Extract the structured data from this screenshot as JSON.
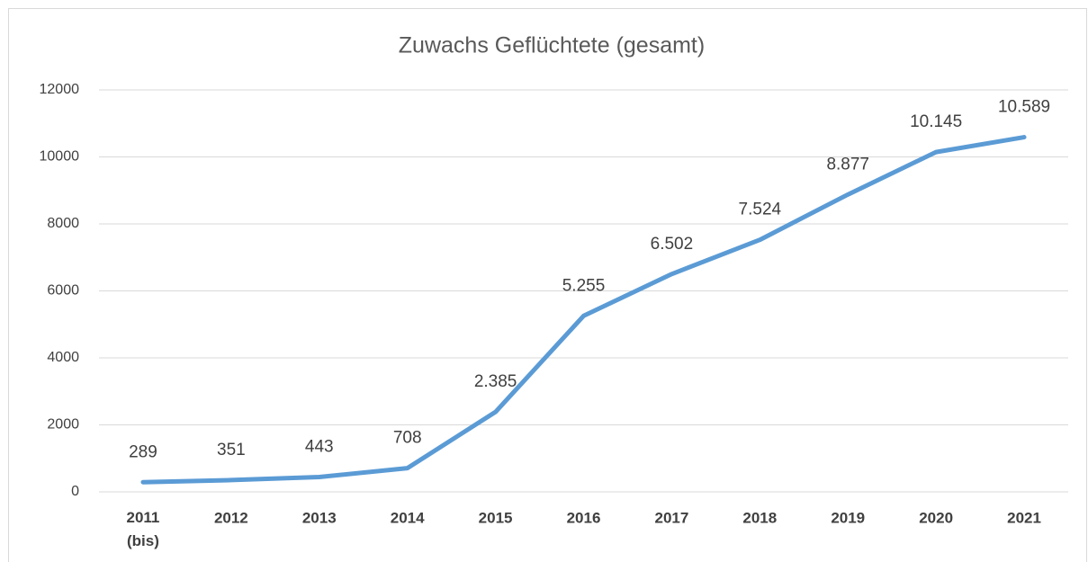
{
  "chart_data": {
    "type": "line",
    "title": "Zuwachs Geflüchtete (gesamt)",
    "categories": [
      "2011 (bis)",
      "2012",
      "2013",
      "2014",
      "2015",
      "2016",
      "2017",
      "2018",
      "2019",
      "2020",
      "2021"
    ],
    "series": [
      {
        "color": "#5b9bd5",
        "values": [
          289,
          351,
          443,
          708,
          2385,
          5255,
          6502,
          7524,
          8877,
          10145,
          10589
        ],
        "value_labels": [
          "289",
          "351",
          "443",
          "708",
          "2.385",
          "5.255",
          "6.502",
          "7.524",
          "8.877",
          "10.145",
          "10.589"
        ]
      }
    ],
    "ylim": [
      0,
      12000
    ],
    "yticks": [
      0,
      2000,
      4000,
      6000,
      8000,
      10000,
      12000
    ],
    "grid": true
  }
}
